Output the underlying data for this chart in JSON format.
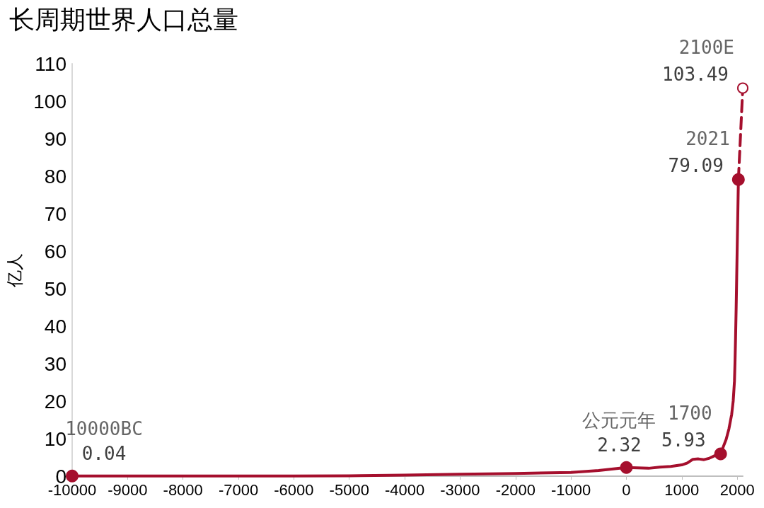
{
  "chart_data": {
    "type": "line",
    "title": "长周期世界人口总量",
    "ylabel": "亿人",
    "xlim": [
      -10000,
      2100
    ],
    "xticks": [
      -10000,
      -9000,
      -8000,
      -7000,
      -6000,
      -5000,
      -4000,
      -3000,
      -2000,
      -1000,
      0,
      1000,
      2000
    ],
    "ylim": [
      0,
      110
    ],
    "yticks": [
      0,
      10,
      20,
      30,
      40,
      50,
      60,
      70,
      80,
      90,
      100,
      110
    ],
    "grid": false,
    "series": [
      {
        "color": "#a50f2d",
        "marker": "none",
        "line_style": "solid",
        "x": [
          -10000,
          -8000,
          -6000,
          -5000,
          -4000,
          -3000,
          -2000,
          -1000,
          -500,
          0,
          200,
          400,
          600,
          800,
          1000,
          1100,
          1200,
          1300,
          1400,
          1500,
          1600,
          1700,
          1750,
          1800,
          1850,
          1900,
          1927,
          1950,
          1960,
          1970,
          1980,
          1990,
          2000,
          2010,
          2021
        ],
        "values": [
          0.04,
          0.05,
          0.07,
          0.1,
          0.3,
          0.5,
          0.7,
          1.0,
          1.5,
          2.32,
          2.2,
          2.1,
          2.4,
          2.6,
          3.0,
          3.5,
          4.5,
          4.6,
          4.4,
          4.8,
          5.5,
          5.93,
          7.9,
          9.8,
          12.6,
          16.5,
          20,
          25.3,
          30.4,
          37,
          44.4,
          52.8,
          61.4,
          69.6,
          79.09
        ]
      },
      {
        "color": "#a50f2d",
        "marker": "circle",
        "line_style": "dashed",
        "x": [
          2021,
          2100
        ],
        "values": [
          79.09,
          103.49
        ],
        "value_labels": [
          null,
          "103.49"
        ]
      },
      {
        "type": "scatter",
        "color": "#a50f2d",
        "marker": "circle",
        "x": [
          -10000,
          0,
          1700,
          2021
        ],
        "values": [
          0.04,
          2.32,
          5.93,
          79.09
        ],
        "value_labels": [
          "0.04",
          "2.32",
          "5.93",
          "79.09"
        ]
      }
    ],
    "annotations": [
      {
        "text": "10000BC",
        "x": -10000,
        "y": 0.04
      },
      {
        "text": "公元元年",
        "x": 0,
        "y": 2.32
      },
      {
        "text": "1700",
        "x": 1700,
        "y": 5.93
      },
      {
        "text": "2021",
        "x": 2021,
        "y": 79.09
      },
      {
        "text": "2100E",
        "x": 2100,
        "y": 103.49
      }
    ]
  }
}
